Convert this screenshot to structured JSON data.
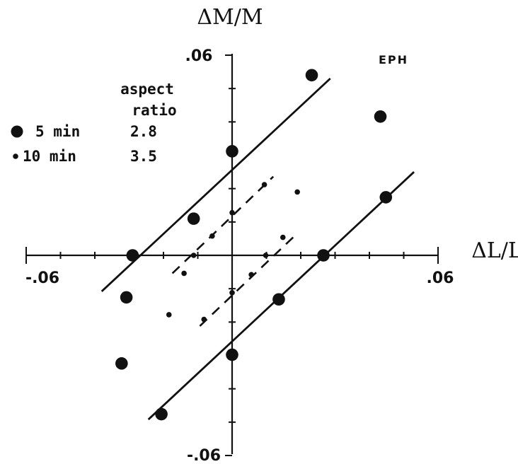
{
  "chart_data": {
    "type": "scatter",
    "panel_label": "EPH",
    "xlabel": "ΔL/L",
    "ylabel": "ΔM/M",
    "xlim": [
      -0.06,
      0.06
    ],
    "ylim": [
      -0.06,
      0.06
    ],
    "x_tick_labels": [
      "-.06",
      ".06"
    ],
    "y_tick_labels": [
      ".06",
      "-.06"
    ],
    "legend": {
      "header_line1": "aspect",
      "header_line2": "ratio",
      "entries": [
        {
          "duration": "5 min",
          "aspect_ratio": "2.8"
        },
        {
          "duration": "10 min",
          "aspect_ratio": "3.5"
        }
      ]
    },
    "series": [
      {
        "marker": "large-dot",
        "points": [
          {
            "x": 0.0232,
            "y": 0.054
          },
          {
            "x": 0.0432,
            "y": 0.0416
          },
          {
            "x": 0.0,
            "y": 0.0312
          },
          {
            "x": -0.0112,
            "y": 0.011
          },
          {
            "x": -0.029,
            "y": 0.0
          },
          {
            "x": 0.0266,
            "y": 0.0
          },
          {
            "x": 0.0448,
            "y": 0.0174
          },
          {
            "x": -0.0308,
            "y": -0.0126
          },
          {
            "x": 0.0136,
            "y": -0.0132
          },
          {
            "x": -0.0322,
            "y": -0.0324
          },
          {
            "x": 0.0,
            "y": -0.0298
          },
          {
            "x": -0.0206,
            "y": -0.0476
          }
        ]
      },
      {
        "marker": "small-dot",
        "points": [
          {
            "x": 0.0094,
            "y": 0.0212
          },
          {
            "x": 0.019,
            "y": 0.019
          },
          {
            "x": 0.0,
            "y": 0.0128
          },
          {
            "x": -0.0058,
            "y": 0.0058
          },
          {
            "x": -0.0112,
            "y": 0.0
          },
          {
            "x": 0.0098,
            "y": 0.0
          },
          {
            "x": 0.0148,
            "y": 0.0054
          },
          {
            "x": -0.014,
            "y": -0.0054
          },
          {
            "x": 0.0056,
            "y": -0.0058
          },
          {
            "x": 0.0,
            "y": -0.0112
          },
          {
            "x": -0.0184,
            "y": -0.0178
          },
          {
            "x": -0.0082,
            "y": -0.0192
          }
        ]
      }
    ],
    "fit_lines": [
      {
        "style": "solid",
        "x1": -0.038,
        "y1": -0.0108,
        "x2": 0.0286,
        "y2": 0.053
      },
      {
        "style": "solid",
        "x1": -0.0244,
        "y1": -0.0492,
        "x2": 0.053,
        "y2": 0.025
      },
      {
        "style": "dashed",
        "x1": -0.0174,
        "y1": -0.0054,
        "x2": 0.012,
        "y2": 0.0236
      },
      {
        "style": "dashed",
        "x1": -0.0094,
        "y1": -0.0212,
        "x2": 0.0188,
        "y2": 0.0064
      }
    ]
  }
}
